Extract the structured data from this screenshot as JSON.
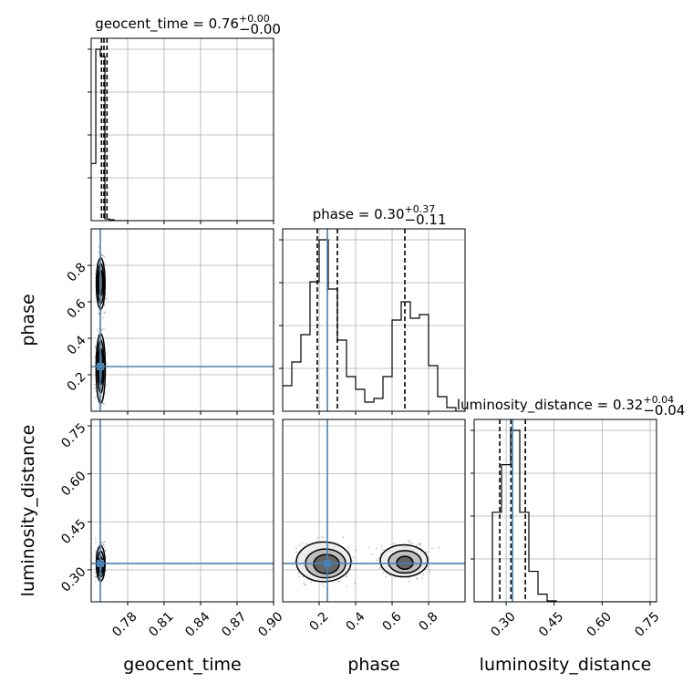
{
  "chart_data": {
    "type": "corner",
    "parameters": [
      "geocent_time",
      "phase",
      "luminosity_distance"
    ],
    "truths": {
      "geocent_time": 0.7575,
      "phase": 0.245,
      "luminosity_distance": 0.32
    },
    "colors": {
      "truth": "#4682b4",
      "hist": "#000000",
      "grid": "#b0b0b0",
      "points": "#555555"
    },
    "grid": true,
    "titles": {
      "geocent_time": {
        "name": "geocent_time",
        "median": "0.76",
        "plus": "+0.00",
        "minus": "−0.00"
      },
      "phase": {
        "name": "phase",
        "median": "0.30",
        "plus": "+0.37",
        "minus": "−0.11"
      },
      "luminosity_distance": {
        "name": "luminosity_distance",
        "median": "0.32",
        "plus": "+0.04",
        "minus": "−0.04"
      }
    },
    "axes": {
      "geocent_time": {
        "range": [
          0.75,
          0.9
        ],
        "ticks": [
          0.78,
          0.81,
          0.84,
          0.87,
          0.9
        ],
        "tick_labels": [
          "0.78",
          "0.81",
          "0.84",
          "0.87",
          "0.90"
        ],
        "label": "geocent_time"
      },
      "phase": {
        "range": [
          0.0,
          1.0
        ],
        "ticks": [
          0.2,
          0.4,
          0.6,
          0.8
        ],
        "tick_labels": [
          "0.2",
          "0.4",
          "0.6",
          "0.8"
        ],
        "label": "phase"
      },
      "luminosity_distance": {
        "range": [
          0.2,
          0.77
        ],
        "ticks": [
          0.3,
          0.45,
          0.6,
          0.75
        ],
        "tick_labels": [
          "0.30",
          "0.45",
          "0.60",
          "0.75"
        ],
        "label": "luminosity_distance"
      }
    },
    "hist1d": {
      "geocent_time": {
        "bin_edges": [
          0.75,
          0.7538,
          0.7575,
          0.7613,
          0.765,
          0.7688,
          0.7725,
          0.7763,
          0.78
        ],
        "counts": [
          0.32,
          0.96,
          0.92,
          0.01,
          0.005,
          0,
          0,
          0
        ],
        "quantiles": [
          0.7585,
          0.7605,
          0.763
        ]
      },
      "phase": {
        "bin_edges": [
          0.0,
          0.05,
          0.1,
          0.15,
          0.2,
          0.25,
          0.3,
          0.35,
          0.4,
          0.45,
          0.5,
          0.55,
          0.6,
          0.65,
          0.7,
          0.75,
          0.8,
          0.85,
          0.9,
          0.95,
          1.0
        ],
        "counts": [
          0.14,
          0.27,
          0.42,
          0.71,
          0.94,
          0.67,
          0.39,
          0.19,
          0.12,
          0.05,
          0.07,
          0.19,
          0.5,
          0.6,
          0.51,
          0.53,
          0.25,
          0.08,
          0.02,
          0.0
        ],
        "quantiles": [
          0.19,
          0.3,
          0.67
        ]
      },
      "luminosity_distance": {
        "bin_edges": [
          0.2,
          0.2285,
          0.257,
          0.2855,
          0.314,
          0.3425,
          0.371,
          0.3995,
          0.428,
          0.4565,
          0.485,
          0.5135,
          0.542,
          0.5705,
          0.599,
          0.6275,
          0.656,
          0.6845,
          0.713,
          0.7415,
          0.77
        ],
        "counts": [
          0.0,
          0.0,
          0.47,
          0.72,
          0.9,
          0.47,
          0.16,
          0.04,
          0.005,
          0.0,
          0.0,
          0.0,
          0.0,
          0.0,
          0.0,
          0.0,
          0.0,
          0.0,
          0.0,
          0.0
        ],
        "quantiles": [
          0.28,
          0.315,
          0.36
        ]
      }
    },
    "contours": {
      "geocent_time__phase": [
        {
          "cx": 0.7578,
          "cy": 0.245,
          "rx": 0.0018,
          "ry": 0.1,
          "level": 1
        },
        {
          "cx": 0.7578,
          "cy": 0.245,
          "rx": 0.0027,
          "ry": 0.145,
          "level": 2
        },
        {
          "cx": 0.7578,
          "cy": 0.235,
          "rx": 0.0038,
          "ry": 0.19,
          "level": 3
        },
        {
          "cx": 0.7578,
          "cy": 0.705,
          "rx": 0.0017,
          "ry": 0.07,
          "level": 1
        },
        {
          "cx": 0.7578,
          "cy": 0.7,
          "rx": 0.0026,
          "ry": 0.11,
          "level": 2
        },
        {
          "cx": 0.7578,
          "cy": 0.7,
          "rx": 0.0036,
          "ry": 0.14,
          "level": 3
        }
      ],
      "geocent_time__luminosity_distance": [
        {
          "cx": 0.7578,
          "cy": 0.315,
          "rx": 0.0018,
          "ry": 0.025,
          "level": 1
        },
        {
          "cx": 0.7578,
          "cy": 0.318,
          "rx": 0.0027,
          "ry": 0.04,
          "level": 2
        },
        {
          "cx": 0.7578,
          "cy": 0.32,
          "rx": 0.0036,
          "ry": 0.055,
          "level": 3
        }
      ],
      "phase__luminosity_distance": [
        {
          "cx": 0.24,
          "cy": 0.318,
          "rx": 0.07,
          "ry": 0.03,
          "level": 1
        },
        {
          "cx": 0.235,
          "cy": 0.32,
          "rx": 0.11,
          "ry": 0.045,
          "level": 2
        },
        {
          "cx": 0.225,
          "cy": 0.325,
          "rx": 0.15,
          "ry": 0.062,
          "level": 3
        },
        {
          "cx": 0.67,
          "cy": 0.322,
          "rx": 0.045,
          "ry": 0.02,
          "level": 1
        },
        {
          "cx": 0.67,
          "cy": 0.325,
          "rx": 0.09,
          "ry": 0.035,
          "level": 2
        },
        {
          "cx": 0.665,
          "cy": 0.328,
          "rx": 0.13,
          "ry": 0.05,
          "level": 3
        }
      ]
    }
  }
}
